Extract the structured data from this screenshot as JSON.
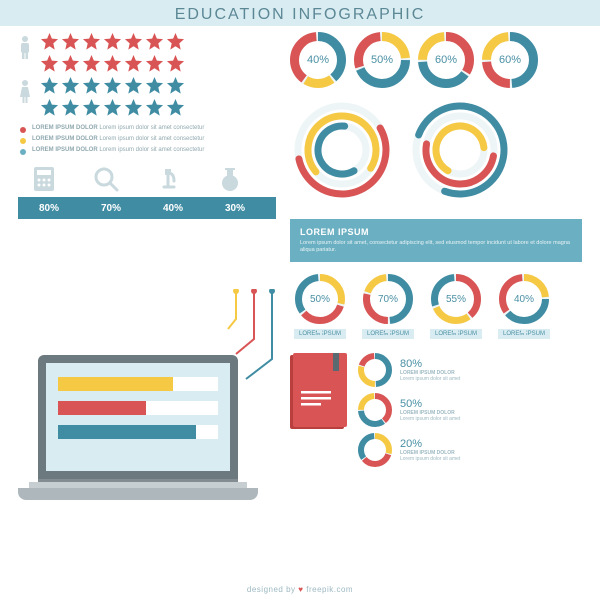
{
  "colors": {
    "red": "#d95454",
    "teal": "#3f8ca3",
    "light_teal": "#6bb0c2",
    "yellow": "#f6c945",
    "pale_blue": "#d9ecf2",
    "icon_grey": "#c9d9de",
    "text_grey": "#90a9b0",
    "header_text": "#5c8896",
    "dark_grey": "#6c7a80"
  },
  "header": {
    "title": "EDUCATION INFOGRAPHIC",
    "bg": "#d9ecf2",
    "color": "#5c8896",
    "fontsize": 16
  },
  "stars": {
    "rows": [
      {
        "count": 7,
        "color": "#d95454"
      },
      {
        "count": 7,
        "color": "#d95454"
      },
      {
        "count": 7,
        "color": "#3f8ca3"
      },
      {
        "count": 7,
        "color": "#3f8ca3"
      }
    ]
  },
  "legend": [
    {
      "color": "#d95454",
      "title": "LOREM IPSUM DOLOR",
      "desc": "Lorem ipsum dolor sit amet consectetur"
    },
    {
      "color": "#f6c945",
      "title": "LOREM IPSUM DOLOR",
      "desc": "Lorem ipsum dolor sit amet consectetur"
    },
    {
      "color": "#6bb0c2",
      "title": "LOREM IPSUM DOLOR",
      "desc": "Lorem ipsum dolor sit amet consectetur"
    }
  ],
  "tools": [
    {
      "name": "calculator",
      "pct": "80%"
    },
    {
      "name": "magnifier",
      "pct": "70%"
    },
    {
      "name": "microscope",
      "pct": "40%"
    },
    {
      "name": "flask",
      "pct": "30%"
    }
  ],
  "pct_bar_bg": "#3f8ca3",
  "top_donuts": [
    {
      "label": "40%",
      "segments": [
        {
          "c": "#3f8ca3",
          "f": 0.4
        },
        {
          "c": "#f6c945",
          "f": 0.2
        },
        {
          "c": "#d95454",
          "f": 0.4
        }
      ]
    },
    {
      "label": "50%",
      "segments": [
        {
          "c": "#f6c945",
          "f": 0.25
        },
        {
          "c": "#3f8ca3",
          "f": 0.45
        },
        {
          "c": "#d95454",
          "f": 0.3
        }
      ]
    },
    {
      "label": "60%",
      "segments": [
        {
          "c": "#d95454",
          "f": 0.35
        },
        {
          "c": "#3f8ca3",
          "f": 0.4
        },
        {
          "c": "#f6c945",
          "f": 0.25
        }
      ]
    },
    {
      "label": "60%",
      "segments": [
        {
          "c": "#3f8ca3",
          "f": 0.5
        },
        {
          "c": "#d95454",
          "f": 0.25
        },
        {
          "c": "#f6c945",
          "f": 0.25
        }
      ]
    }
  ],
  "rings": [
    {
      "arcs": [
        {
          "r": 44,
          "c": "#d95454",
          "f": 0.55,
          "rot": -30
        },
        {
          "r": 34,
          "c": "#f6c945",
          "f": 0.7,
          "rot": 140
        },
        {
          "r": 24,
          "c": "#3f8ca3",
          "f": 0.6,
          "rot": 60
        }
      ]
    },
    {
      "arcs": [
        {
          "r": 44,
          "c": "#3f8ca3",
          "f": 0.75,
          "rot": 200
        },
        {
          "r": 34,
          "c": "#d95454",
          "f": 0.5,
          "rot": 10
        },
        {
          "r": 24,
          "c": "#f6c945",
          "f": 0.65,
          "rot": 120
        }
      ]
    }
  ],
  "info_box": {
    "bg": "#6bb0c2",
    "title": "LOREM IPSUM",
    "desc": "Lorem ipsum dolor sit amet, consectetur adipiscing elit, sed eiusmod tempor incidunt ut labore et dolore magna aliqua pariatur."
  },
  "labeled_donuts": [
    {
      "pct": "50%",
      "tag": "LOREM IPSUM",
      "segments": [
        {
          "c": "#f6c945",
          "f": 0.3
        },
        {
          "c": "#d95454",
          "f": 0.35
        },
        {
          "c": "#3f8ca3",
          "f": 0.35
        }
      ]
    },
    {
      "pct": "70%",
      "tag": "LOREM IPSUM",
      "segments": [
        {
          "c": "#3f8ca3",
          "f": 0.5
        },
        {
          "c": "#d95454",
          "f": 0.3
        },
        {
          "c": "#f6c945",
          "f": 0.2
        }
      ]
    },
    {
      "pct": "55%",
      "tag": "LOREM IPSUM",
      "segments": [
        {
          "c": "#d95454",
          "f": 0.4
        },
        {
          "c": "#f6c945",
          "f": 0.3
        },
        {
          "c": "#3f8ca3",
          "f": 0.3
        }
      ]
    },
    {
      "pct": "40%",
      "tag": "LOREM IPSUM",
      "segments": [
        {
          "c": "#f6c945",
          "f": 0.25
        },
        {
          "c": "#3f8ca3",
          "f": 0.4
        },
        {
          "c": "#d95454",
          "f": 0.35
        }
      ]
    }
  ],
  "laptop_bars": [
    {
      "color": "#f6c945",
      "width": 0.72
    },
    {
      "color": "#d95454",
      "width": 0.55
    },
    {
      "color": "#3f8ca3",
      "width": 0.86
    }
  ],
  "book": {
    "cover": "#d95454",
    "lines": "#ffffff"
  },
  "mini_stats": [
    {
      "pct": "80%",
      "title": "LOREM IPSUM DOLOR",
      "desc": "Lorem ipsum dolor sit amet",
      "segments": [
        {
          "c": "#3f8ca3",
          "f": 0.5
        },
        {
          "c": "#f6c945",
          "f": 0.3
        },
        {
          "c": "#d95454",
          "f": 0.2
        }
      ]
    },
    {
      "pct": "50%",
      "title": "LOREM IPSUM DOLOR",
      "desc": "Lorem ipsum dolor sit amet",
      "segments": [
        {
          "c": "#d95454",
          "f": 0.4
        },
        {
          "c": "#3f8ca3",
          "f": 0.35
        },
        {
          "c": "#f6c945",
          "f": 0.25
        }
      ]
    },
    {
      "pct": "20%",
      "title": "LOREM IPSUM DOLOR",
      "desc": "Lorem ipsum dolor sit amet",
      "segments": [
        {
          "c": "#f6c945",
          "f": 0.3
        },
        {
          "c": "#d95454",
          "f": 0.35
        },
        {
          "c": "#3f8ca3",
          "f": 0.35
        }
      ]
    }
  ],
  "footer": {
    "text": "designed by ♥ freepik.com"
  }
}
